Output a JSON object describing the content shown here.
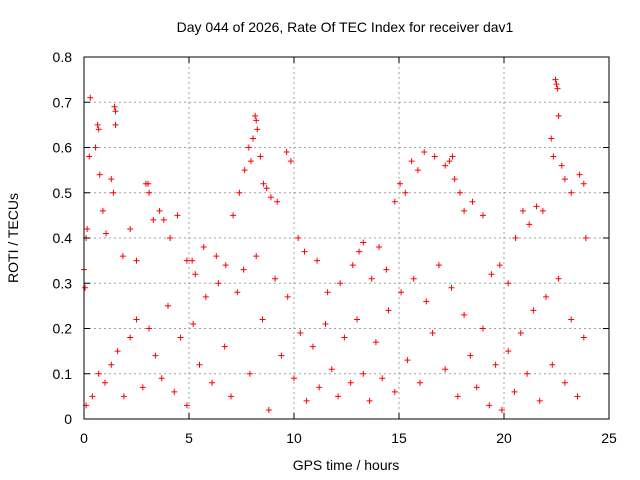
{
  "chart_data": {
    "type": "scatter",
    "title": "Day 044 of 2026, Rate Of TEC Index for receiver dav1",
    "xlabel": "GPS time / hours",
    "ylabel": "ROTI / TECUs",
    "xlim": [
      0,
      25
    ],
    "ylim": [
      0,
      0.8
    ],
    "xticks": [
      "0",
      "5",
      "10",
      "15",
      "20",
      "25"
    ],
    "yticks": [
      "0",
      "0.1",
      "0.2",
      "0.3",
      "0.4",
      "0.5",
      "0.6",
      "0.7",
      "0.8"
    ],
    "grid": true,
    "marker": "+",
    "color": "#ff0000",
    "series": [
      {
        "points": [
          [
            0.0,
            0.33
          ],
          [
            0.05,
            0.29
          ],
          [
            0.1,
            0.4
          ],
          [
            0.15,
            0.42
          ],
          [
            0.25,
            0.58
          ],
          [
            0.3,
            0.71
          ],
          [
            0.55,
            0.6
          ],
          [
            0.65,
            0.65
          ],
          [
            0.7,
            0.64
          ],
          [
            0.75,
            0.54
          ],
          [
            0.9,
            0.46
          ],
          [
            1.05,
            0.41
          ],
          [
            1.3,
            0.53
          ],
          [
            1.4,
            0.5
          ],
          [
            1.45,
            0.69
          ],
          [
            1.5,
            0.68
          ],
          [
            1.5,
            0.65
          ],
          [
            1.85,
            0.36
          ],
          [
            2.2,
            0.42
          ],
          [
            2.5,
            0.35
          ],
          [
            2.95,
            0.52
          ],
          [
            3.05,
            0.52
          ],
          [
            3.1,
            0.5
          ],
          [
            3.3,
            0.44
          ],
          [
            3.6,
            0.46
          ],
          [
            3.8,
            0.44
          ],
          [
            4.1,
            0.4
          ],
          [
            4.45,
            0.45
          ],
          [
            4.9,
            0.35
          ],
          [
            5.15,
            0.35
          ],
          [
            5.3,
            0.32
          ],
          [
            5.7,
            0.38
          ],
          [
            6.3,
            0.36
          ],
          [
            6.75,
            0.34
          ],
          [
            7.1,
            0.45
          ],
          [
            7.4,
            0.5
          ],
          [
            7.65,
            0.55
          ],
          [
            7.85,
            0.6
          ],
          [
            7.95,
            0.57
          ],
          [
            8.05,
            0.62
          ],
          [
            8.15,
            0.67
          ],
          [
            8.2,
            0.66
          ],
          [
            8.25,
            0.64
          ],
          [
            8.4,
            0.58
          ],
          [
            8.55,
            0.52
          ],
          [
            8.7,
            0.51
          ],
          [
            8.9,
            0.49
          ],
          [
            9.2,
            0.48
          ],
          [
            9.65,
            0.59
          ],
          [
            9.85,
            0.57
          ],
          [
            10.2,
            0.4
          ],
          [
            10.5,
            0.37
          ],
          [
            11.1,
            0.35
          ],
          [
            11.6,
            0.28
          ],
          [
            12.2,
            0.3
          ],
          [
            12.8,
            0.34
          ],
          [
            13.1,
            0.37
          ],
          [
            13.3,
            0.39
          ],
          [
            13.7,
            0.31
          ],
          [
            14.05,
            0.38
          ],
          [
            14.4,
            0.33
          ],
          [
            14.8,
            0.48
          ],
          [
            15.05,
            0.52
          ],
          [
            15.3,
            0.5
          ],
          [
            15.6,
            0.57
          ],
          [
            15.9,
            0.55
          ],
          [
            16.2,
            0.59
          ],
          [
            16.7,
            0.58
          ],
          [
            17.2,
            0.56
          ],
          [
            17.4,
            0.57
          ],
          [
            17.55,
            0.58
          ],
          [
            17.65,
            0.53
          ],
          [
            17.9,
            0.5
          ],
          [
            18.1,
            0.46
          ],
          [
            18.5,
            0.48
          ],
          [
            19.0,
            0.45
          ],
          [
            19.4,
            0.32
          ],
          [
            19.8,
            0.34
          ],
          [
            20.2,
            0.3
          ],
          [
            20.55,
            0.4
          ],
          [
            20.9,
            0.46
          ],
          [
            21.2,
            0.43
          ],
          [
            21.55,
            0.47
          ],
          [
            21.85,
            0.46
          ],
          [
            22.25,
            0.62
          ],
          [
            22.35,
            0.58
          ],
          [
            22.45,
            0.75
          ],
          [
            22.5,
            0.74
          ],
          [
            22.55,
            0.73
          ],
          [
            22.6,
            0.67
          ],
          [
            22.75,
            0.56
          ],
          [
            22.9,
            0.53
          ],
          [
            23.2,
            0.5
          ],
          [
            23.6,
            0.54
          ],
          [
            23.8,
            0.52
          ],
          [
            23.9,
            0.4
          ],
          [
            0.1,
            0.03
          ],
          [
            0.4,
            0.05
          ],
          [
            0.7,
            0.1
          ],
          [
            1.0,
            0.08
          ],
          [
            1.3,
            0.12
          ],
          [
            1.6,
            0.15
          ],
          [
            1.9,
            0.05
          ],
          [
            2.2,
            0.18
          ],
          [
            2.5,
            0.22
          ],
          [
            2.8,
            0.07
          ],
          [
            3.1,
            0.2
          ],
          [
            3.4,
            0.14
          ],
          [
            3.7,
            0.09
          ],
          [
            4.0,
            0.25
          ],
          [
            4.3,
            0.06
          ],
          [
            4.6,
            0.18
          ],
          [
            4.9,
            0.03
          ],
          [
            5.2,
            0.21
          ],
          [
            5.5,
            0.12
          ],
          [
            5.8,
            0.27
          ],
          [
            6.1,
            0.08
          ],
          [
            6.4,
            0.3
          ],
          [
            6.7,
            0.16
          ],
          [
            7.0,
            0.05
          ],
          [
            7.3,
            0.28
          ],
          [
            7.6,
            0.33
          ],
          [
            7.9,
            0.1
          ],
          [
            8.2,
            0.36
          ],
          [
            8.5,
            0.22
          ],
          [
            8.8,
            0.02
          ],
          [
            9.1,
            0.31
          ],
          [
            9.4,
            0.14
          ],
          [
            9.7,
            0.27
          ],
          [
            10.0,
            0.09
          ],
          [
            10.3,
            0.19
          ],
          [
            10.6,
            0.04
          ],
          [
            10.9,
            0.16
          ],
          [
            11.2,
            0.07
          ],
          [
            11.5,
            0.21
          ],
          [
            11.8,
            0.11
          ],
          [
            12.1,
            0.05
          ],
          [
            12.4,
            0.18
          ],
          [
            12.7,
            0.08
          ],
          [
            13.0,
            0.22
          ],
          [
            13.3,
            0.1
          ],
          [
            13.6,
            0.04
          ],
          [
            13.9,
            0.17
          ],
          [
            14.2,
            0.09
          ],
          [
            14.5,
            0.24
          ],
          [
            14.8,
            0.06
          ],
          [
            15.1,
            0.28
          ],
          [
            15.4,
            0.13
          ],
          [
            15.7,
            0.31
          ],
          [
            16.0,
            0.08
          ],
          [
            16.3,
            0.26
          ],
          [
            16.6,
            0.19
          ],
          [
            16.9,
            0.34
          ],
          [
            17.2,
            0.11
          ],
          [
            17.5,
            0.29
          ],
          [
            17.8,
            0.05
          ],
          [
            18.1,
            0.23
          ],
          [
            18.4,
            0.14
          ],
          [
            18.7,
            0.07
          ],
          [
            19.0,
            0.2
          ],
          [
            19.3,
            0.03
          ],
          [
            19.6,
            0.12
          ],
          [
            19.9,
            0.02
          ],
          [
            20.2,
            0.15
          ],
          [
            20.5,
            0.06
          ],
          [
            20.8,
            0.19
          ],
          [
            21.1,
            0.1
          ],
          [
            21.4,
            0.24
          ],
          [
            21.7,
            0.04
          ],
          [
            22.0,
            0.27
          ],
          [
            22.3,
            0.12
          ],
          [
            22.6,
            0.31
          ],
          [
            22.9,
            0.08
          ],
          [
            23.2,
            0.22
          ],
          [
            23.5,
            0.05
          ],
          [
            23.8,
            0.18
          ]
        ]
      }
    ]
  }
}
